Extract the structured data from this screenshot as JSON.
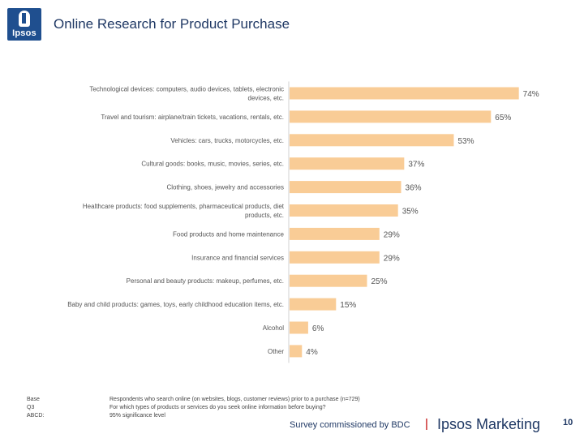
{
  "header": {
    "logo_text": "Ipsos",
    "title": "Online Research for Product Purchase"
  },
  "chart_data": {
    "type": "bar",
    "orientation": "horizontal",
    "title": "Online Research for Product Purchase",
    "categories": [
      "Technological devices: computers, audio devices, tablets, electronic devices, etc.",
      "Travel and tourism: airplane/train tickets, vacations, rentals, etc.",
      "Vehicles: cars, trucks, motorcycles, etc.",
      "Cultural goods: books, music, movies, series, etc.",
      "Clothing, shoes, jewelry and accessories",
      "Healthcare products: food supplements, pharmaceutical products, diet products, etc.",
      "Food products and home maintenance",
      "Insurance and financial services",
      "Personal and beauty products: makeup, perfumes, etc.",
      "Baby and child products: games, toys, early childhood education items, etc.",
      "Alcohol",
      "Other"
    ],
    "category_lines": [
      [
        "Technological devices: computers, audio devices, tablets, electronic",
        "devices, etc."
      ],
      [
        "Travel and tourism: airplane/train tickets, vacations, rentals, etc."
      ],
      [
        "Vehicles: cars, trucks, motorcycles, etc."
      ],
      [
        "Cultural goods: books, music, movies, series, etc."
      ],
      [
        "Clothing, shoes, jewelry and accessories"
      ],
      [
        "Healthcare products: food supplements, pharmaceutical products, diet",
        "products, etc."
      ],
      [
        "Food products and home maintenance"
      ],
      [
        "Insurance and financial services"
      ],
      [
        "Personal and beauty products: makeup, perfumes, etc."
      ],
      [
        "Baby and child products: games, toys, early childhood education items, etc."
      ],
      [
        "Alcohol"
      ],
      [
        "Other"
      ]
    ],
    "values": [
      74,
      65,
      53,
      37,
      36,
      35,
      29,
      29,
      25,
      15,
      6,
      4
    ],
    "value_labels": [
      "74%",
      "65%",
      "53%",
      "37%",
      "36%",
      "35%",
      "29%",
      "29%",
      "25%",
      "15%",
      "6%",
      "4%"
    ],
    "unit": "%",
    "xlim": [
      0,
      80
    ],
    "bar_color": "#f9cc96",
    "grid": false
  },
  "footnotes": [
    {
      "key": "Base",
      "value": "Respondents who search online (on websites, blogs, customer reviews) prior to a purchase (n=729)"
    },
    {
      "key": "Q3 :",
      "value": "For which types of products or services do you seek online information before buying?"
    },
    {
      "key": "ABCD:",
      "value": "95% significance level"
    }
  ],
  "footer": {
    "commission": "Survey commissioned by BDC",
    "separator": "|",
    "brand": "Ipsos Marketing",
    "page_number": "10"
  }
}
